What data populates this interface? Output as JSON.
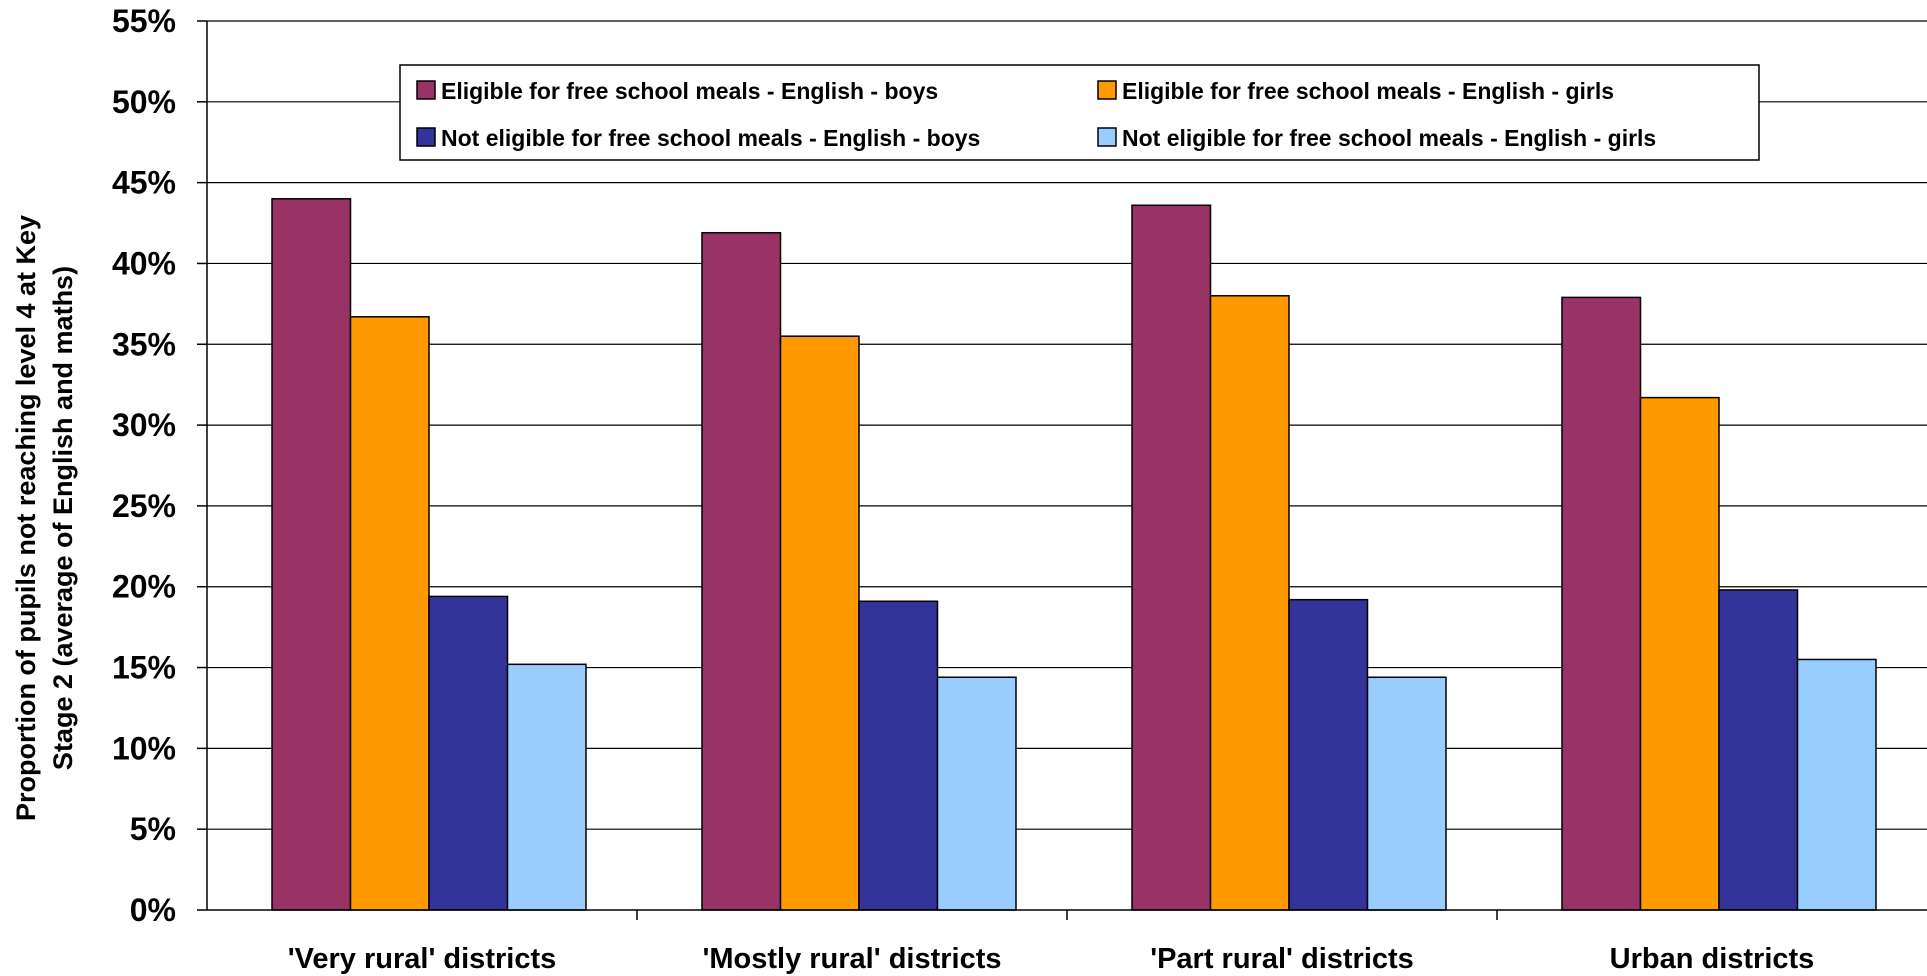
{
  "chart_data": {
    "type": "bar",
    "title": "",
    "xlabel": "",
    "ylabel_lines": [
      "Proportion of pupils not reaching level 4 at Key",
      "Stage 2 (average of English and maths)"
    ],
    "ylim": [
      0,
      55
    ],
    "ytick_step": 5,
    "ytick_suffix": "%",
    "grid": true,
    "legend_position": "top-center",
    "categories": [
      "'Very rural' districts",
      "'Mostly rural' districts",
      "'Part rural' districts",
      "Urban districts"
    ],
    "series": [
      {
        "name": "Eligible for free school meals - English - boys",
        "color": "#993366",
        "values": [
          44.0,
          41.9,
          43.6,
          37.9
        ]
      },
      {
        "name": "Eligible for free school meals - English - girls",
        "color": "#FF9900",
        "values": [
          36.7,
          35.5,
          38.0,
          31.7
        ]
      },
      {
        "name": "Not eligible for free school meals - English - boys",
        "color": "#333399",
        "values": [
          19.4,
          19.1,
          19.2,
          19.8
        ]
      },
      {
        "name": "Not eligible for free school meals - English - girls",
        "color": "#99CCFF",
        "values": [
          15.2,
          14.4,
          14.4,
          15.5
        ]
      }
    ]
  }
}
